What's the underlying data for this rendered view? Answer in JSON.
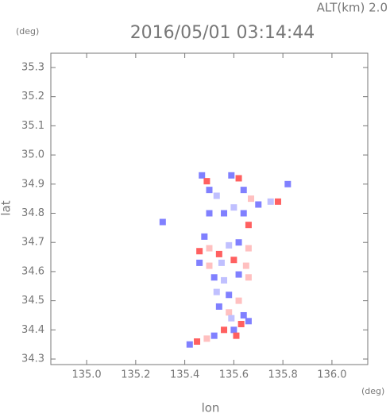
{
  "chart_data": {
    "type": "scatter",
    "title": "2016/05/01 03:14:44",
    "subtitle": "ALT(km) 2.0",
    "x_label": "lon",
    "y_label": "lat",
    "x_unit": "(deg)",
    "y_unit": "(deg)",
    "xlim": [
      134.854,
      136.146
    ],
    "ylim": [
      34.281,
      35.349
    ],
    "xticks": [
      {
        "value": 135,
        "label": "135.0"
      },
      135.2,
      135.4,
      135.6,
      135.8,
      {
        "value": 136,
        "label": "136.0"
      }
    ],
    "yticks": [
      34.3,
      34.4,
      34.5,
      34.6,
      34.7,
      34.8,
      34.9,
      {
        "value": 35,
        "label": "35.0"
      },
      35.1,
      35.2,
      35.3
    ],
    "x": [
      135.47,
      135.49,
      135.5,
      135.53,
      135.59,
      135.62,
      135.64,
      135.67,
      135.7,
      135.75,
      135.78,
      135.82,
      135.56,
      135.6,
      135.64,
      135.66,
      135.5,
      135.48,
      135.46,
      135.5,
      135.54,
      135.58,
      135.62,
      135.66,
      135.46,
      135.5,
      135.55,
      135.6,
      135.65,
      135.52,
      135.56,
      135.62,
      135.66,
      135.53,
      135.58,
      135.62,
      135.54,
      135.58,
      135.42,
      135.45,
      135.49,
      135.52,
      135.56,
      135.6,
      135.63,
      135.66,
      135.61,
      135.59,
      135.64,
      135.31
    ],
    "y": [
      34.93,
      34.91,
      34.88,
      34.86,
      34.93,
      34.92,
      34.88,
      34.85,
      34.83,
      34.84,
      34.84,
      34.9,
      34.8,
      34.82,
      34.8,
      34.76,
      34.8,
      34.72,
      34.67,
      34.68,
      34.66,
      34.69,
      34.7,
      34.68,
      34.63,
      34.62,
      34.63,
      34.64,
      34.62,
      34.58,
      34.57,
      34.59,
      34.58,
      34.53,
      34.52,
      34.5,
      34.48,
      34.46,
      34.35,
      34.36,
      34.37,
      34.38,
      34.4,
      34.4,
      34.42,
      34.43,
      34.38,
      34.44,
      34.45,
      34.77
    ],
    "colors": [
      "#8080ff",
      "#ff6060",
      "#8080ff",
      "#c0c0ff",
      "#8080ff",
      "#ff6060",
      "#8080ff",
      "#ffc0c0",
      "#8080ff",
      "#c0c0ff",
      "#ff6060",
      "#8080ff",
      "#8080ff",
      "#c0c0ff",
      "#8080ff",
      "#ff6060",
      "#8080ff",
      "#8080ff",
      "#ff6060",
      "#ffc0c0",
      "#ff6060",
      "#c0c0ff",
      "#8080ff",
      "#ffc0c0",
      "#8080ff",
      "#ffc0c0",
      "#c0c0ff",
      "#ff6060",
      "#ffc0c0",
      "#8080ff",
      "#c0c0ff",
      "#8080ff",
      "#ffc0c0",
      "#c0c0ff",
      "#8080ff",
      "#ffc0c0",
      "#8080ff",
      "#ffc0c0",
      "#8080ff",
      "#ff6060",
      "#ffc0c0",
      "#8080ff",
      "#ff6060",
      "#8080ff",
      "#ff6060",
      "#8080ff",
      "#ff6060",
      "#c0c0ff",
      "#8080ff",
      "#8080ff"
    ]
  }
}
